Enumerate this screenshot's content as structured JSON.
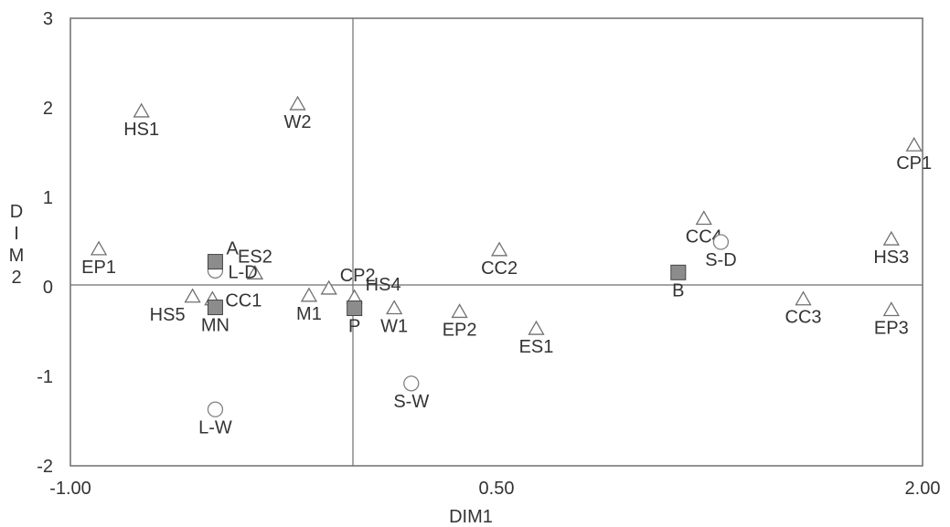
{
  "chart_data": {
    "type": "scatter",
    "xlabel": "DIM1",
    "ylabel": "DIM2",
    "ylabel_display": [
      "D",
      "I",
      "M",
      "2"
    ],
    "xlim": [
      -1.0,
      2.0
    ],
    "ylim": [
      -2,
      3
    ],
    "x_ticks": [
      {
        "value": -1.0,
        "label": "-1.00"
      },
      {
        "value": 0.5,
        "label": "0.50"
      },
      {
        "value": 2.0,
        "label": "2.00"
      }
    ],
    "y_ticks": [
      {
        "value": 3,
        "label": "3"
      },
      {
        "value": 2,
        "label": "2"
      },
      {
        "value": 1,
        "label": "1"
      },
      {
        "value": 0,
        "label": "0"
      },
      {
        "value": -1,
        "label": "-1"
      },
      {
        "value": -2,
        "label": "-2"
      }
    ],
    "reference_lines": {
      "x": 0.0,
      "y": 0
    },
    "grid": false,
    "series": [
      {
        "marker": "triangle",
        "color": "#ffffff",
        "points": [
          {
            "label": "HS1",
            "x": -0.75,
            "y": 1.96,
            "label_pos": "below"
          },
          {
            "label": "W2",
            "x": -0.2,
            "y": 2.04,
            "label_pos": "below"
          },
          {
            "label": "CP1",
            "x": 1.97,
            "y": 1.58,
            "label_pos": "below"
          },
          {
            "label": "EP1",
            "x": -0.9,
            "y": 0.42,
            "label_pos": "below"
          },
          {
            "label": "ES2",
            "x": -0.35,
            "y": 0.15,
            "label_pos": "above"
          },
          {
            "label": "CP2",
            "x": -0.09,
            "y": -0.02,
            "label_pos": "above-right"
          },
          {
            "label": "HS4",
            "x": 0.0,
            "y": -0.12,
            "label_pos": "above-right"
          },
          {
            "label": "M1",
            "x": -0.16,
            "y": -0.1,
            "label_pos": "below"
          },
          {
            "label": "W1",
            "x": 0.14,
            "y": -0.24,
            "label_pos": "below"
          },
          {
            "label": "EP2",
            "x": 0.37,
            "y": -0.28,
            "label_pos": "below"
          },
          {
            "label": "CC2",
            "x": 0.51,
            "y": 0.41,
            "label_pos": "below"
          },
          {
            "label": "ES1",
            "x": 0.64,
            "y": -0.47,
            "label_pos": "below"
          },
          {
            "label": "CC4",
            "x": 1.23,
            "y": 0.76,
            "label_pos": "below"
          },
          {
            "label": "CC3",
            "x": 1.58,
            "y": -0.14,
            "label_pos": "below"
          },
          {
            "label": "HS3",
            "x": 1.89,
            "y": 0.53,
            "label_pos": "below"
          },
          {
            "label": "EP3",
            "x": 1.89,
            "y": -0.26,
            "label_pos": "below"
          },
          {
            "label": "HS5",
            "x": -0.57,
            "y": -0.11,
            "label_pos": "below-left"
          },
          {
            "label": "CC1",
            "x": -0.5,
            "y": -0.14,
            "label_pos": "right"
          }
        ]
      },
      {
        "marker": "circle",
        "color": "#ffffff",
        "points": [
          {
            "label": "L-D",
            "x": -0.49,
            "y": 0.18,
            "label_pos": "right"
          },
          {
            "label": "S-D",
            "x": 1.29,
            "y": 0.5,
            "label_pos": "below"
          },
          {
            "label": "S-W",
            "x": 0.2,
            "y": -1.08,
            "label_pos": "below"
          },
          {
            "label": "L-W",
            "x": -0.49,
            "y": -1.37,
            "label_pos": "below"
          }
        ]
      },
      {
        "marker": "square",
        "color": "#8c8c8c",
        "points": [
          {
            "label": "A",
            "x": -0.49,
            "y": 0.28,
            "label_pos": "above-right"
          },
          {
            "label": "MN",
            "x": -0.49,
            "y": -0.23,
            "label_pos": "below"
          },
          {
            "label": "P",
            "x": 0.0,
            "y": -0.24,
            "label_pos": "below"
          },
          {
            "label": "B",
            "x": 1.14,
            "y": 0.16,
            "label_pos": "below"
          }
        ]
      }
    ]
  }
}
